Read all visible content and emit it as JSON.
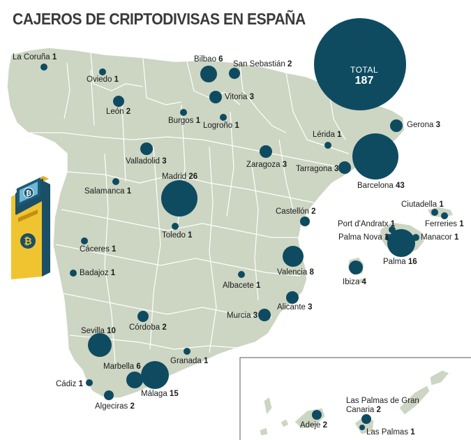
{
  "title": "CAJEROS DE CRIPTODIVISAS EN ESPAÑA",
  "total": {
    "label": "TOTAL",
    "value": "187"
  },
  "colors": {
    "land": "#cdd5c3",
    "border": "#ffffff",
    "bubble": "#0e4b60",
    "sea": "#ffffff",
    "atm_body": "#f0c430",
    "atm_side": "#1b4f66"
  },
  "atm_icon": "bitcoin-atm-icon",
  "cities": [
    {
      "name": "La Coruña",
      "count": "1"
    },
    {
      "name": "Oviedo",
      "count": "1"
    },
    {
      "name": "Bilbao",
      "count": "6"
    },
    {
      "name": "San Sebastián",
      "count": "2"
    },
    {
      "name": "Vitoria",
      "count": "3"
    },
    {
      "name": "León",
      "count": "2"
    },
    {
      "name": "Burgos",
      "count": "1"
    },
    {
      "name": "Logroño",
      "count": "1"
    },
    {
      "name": "Gerona",
      "count": "3"
    },
    {
      "name": "Lérida",
      "count": "1"
    },
    {
      "name": "Valladolid",
      "count": "3"
    },
    {
      "name": "Zaragoza",
      "count": "3"
    },
    {
      "name": "Tarragona",
      "count": "3"
    },
    {
      "name": "Barcelona",
      "count": "43"
    },
    {
      "name": "Madrid",
      "count": "26"
    },
    {
      "name": "Salamanca",
      "count": "1"
    },
    {
      "name": "Ciutadella",
      "count": "1"
    },
    {
      "name": "Castellón",
      "count": "2"
    },
    {
      "name": "Ferreries",
      "count": "1"
    },
    {
      "name": "Port d'Andratx",
      "count": "1"
    },
    {
      "name": "Toledo",
      "count": "1"
    },
    {
      "name": "Palma Nova",
      "count": "1"
    },
    {
      "name": "Manacor",
      "count": "1"
    },
    {
      "name": "Cáceres",
      "count": "1"
    },
    {
      "name": "Palma",
      "count": "16"
    },
    {
      "name": "Badajoz",
      "count": "1"
    },
    {
      "name": "Valencia",
      "count": "8"
    },
    {
      "name": "Ibiza",
      "count": "4"
    },
    {
      "name": "Albacete",
      "count": "1"
    },
    {
      "name": "Alicante",
      "count": "3"
    },
    {
      "name": "Murcia",
      "count": "3"
    },
    {
      "name": "Sevilla",
      "count": "10"
    },
    {
      "name": "Córdoba",
      "count": "2"
    },
    {
      "name": "Granada",
      "count": "1"
    },
    {
      "name": "Marbella",
      "count": "6"
    },
    {
      "name": "Cádiz",
      "count": "1"
    },
    {
      "name": "Málaga",
      "count": "15"
    },
    {
      "name": "Algeciras",
      "count": "2"
    },
    {
      "name": "Las Palmas de Gran Canaria",
      "count": "2"
    },
    {
      "name": "Adeje",
      "count": "2"
    },
    {
      "name": "Las Palmas",
      "count": "1"
    }
  ]
}
